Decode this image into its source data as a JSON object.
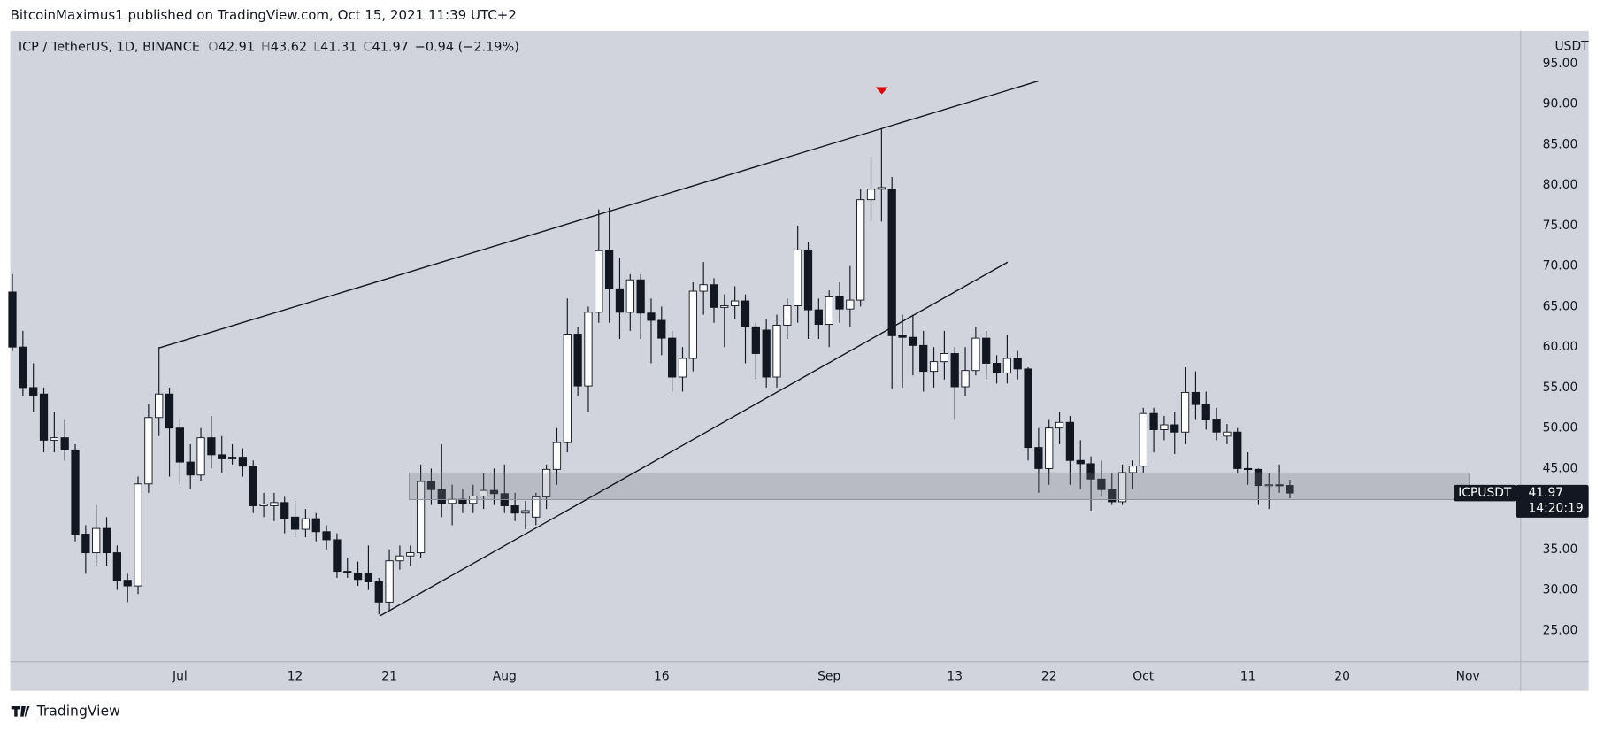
{
  "header": {
    "published": "BitcoinMaximus1 published on TradingView.com, Oct 15, 2021 11:39 UTC+2"
  },
  "chart_data": {
    "type": "candlestick",
    "title": "ICP / TetherUS, 1D, BINANCE",
    "readout": {
      "open_label": "O",
      "open": "42.91",
      "high_label": "H",
      "high": "43.62",
      "low_label": "L",
      "low": "41.31",
      "close_label": "C",
      "close": "41.97",
      "change": "−0.94 (−2.19%)"
    },
    "y_axis_label": "USDT",
    "last_price": {
      "symbol": "ICPUSDT",
      "price": "41.97",
      "countdown": "14:20:19"
    },
    "up_color": "#ffffff",
    "down_color": "#131722",
    "wick_color": "#131722",
    "grid": false,
    "categories": [
      null,
      null,
      null,
      null,
      null,
      null,
      null,
      null,
      null,
      null,
      null,
      null,
      null,
      null,
      null,
      null,
      "Jul",
      null,
      null,
      null,
      null,
      null,
      null,
      null,
      null,
      null,
      null,
      "12",
      null,
      null,
      null,
      null,
      null,
      null,
      null,
      null,
      "21",
      null,
      null,
      null,
      null,
      null,
      null,
      null,
      null,
      null,
      null,
      "Aug",
      null,
      null,
      null,
      null,
      null,
      null,
      null,
      null,
      null,
      null,
      null,
      null,
      null,
      null,
      "16",
      null,
      null,
      null,
      null,
      null,
      null,
      null,
      null,
      null,
      null,
      null,
      null,
      null,
      null,
      null,
      "Sep",
      null,
      null,
      null,
      null,
      null,
      null,
      null,
      null,
      null,
      null,
      null,
      "13",
      null,
      null,
      null,
      null,
      null,
      null,
      null,
      null,
      "22",
      null,
      null,
      null,
      null,
      null,
      null,
      null,
      null,
      "Oct",
      null,
      null,
      null,
      null,
      null,
      null,
      null,
      null,
      null,
      "11",
      null,
      null,
      null,
      null,
      null,
      null,
      null,
      null,
      "20",
      null,
      null,
      null,
      null,
      null,
      null,
      null,
      null,
      null,
      null,
      null,
      "Nov",
      null,
      null,
      null,
      null
    ],
    "open": [
      66.8,
      60,
      55,
      54.2,
      48.5,
      48.8,
      47.3,
      36.9,
      34.6,
      37.6,
      34.6,
      31.2,
      30.5,
      43.1,
      51.3,
      54.2,
      50,
      45.8,
      44.2,
      48.8,
      46.7,
      46.2,
      46.4,
      45.3,
      40.4,
      40.4,
      40.8,
      39,
      37.5,
      38.8,
      37.2,
      36.2,
      32.3,
      32.1,
      32,
      31,
      28.5,
      33.6,
      34.2,
      34.6,
      43.4,
      42.4,
      40.7,
      41.2,
      40.7,
      41.6,
      42.3,
      41.9,
      40.4,
      39.5,
      39,
      41.5,
      44.9,
      48.2,
      61.6,
      55.2,
      64.3,
      71.9,
      67.2,
      64.3,
      68.3,
      64.2,
      63.3,
      61.1,
      56.3,
      58.6,
      66.9,
      67.7,
      64.9,
      65.1,
      65.7,
      62.5,
      62.1,
      56.3,
      62.7,
      65.1,
      72,
      64.6,
      62.8,
      66.2,
      64.7,
      65.8,
      78.2,
      79.5,
      79.5,
      61.4,
      61.2,
      60.2,
      57,
      58.2,
      59.2,
      55.1,
      57.1,
      61.1,
      58,
      56.8,
      58.6,
      57.3,
      47.6,
      45,
      50,
      50.7,
      46,
      45.6,
      43.7,
      42.4,
      40.9,
      44.5,
      45.3,
      51.8,
      49.8,
      50.4,
      49.5,
      54.4,
      52.9,
      51,
      49,
      49.5,
      45,
      44.9,
      42.9,
      43,
      42.91,
      null,
      null,
      null,
      null,
      null,
      null,
      null,
      null,
      null,
      null,
      null,
      null,
      null,
      null,
      null,
      null,
      null,
      null,
      null,
      null,
      null
    ],
    "high": [
      69,
      62,
      58,
      55,
      52,
      51,
      48,
      38,
      40.5,
      39,
      35.5,
      32,
      44,
      53,
      60,
      55,
      51,
      48,
      50,
      51.5,
      49,
      48,
      47.5,
      46,
      42,
      42,
      41.5,
      41,
      40,
      39.5,
      38,
      37,
      34,
      33.5,
      35.5,
      31.5,
      35,
      35.5,
      35.5,
      45.5,
      45,
      48,
      43,
      42.5,
      43,
      44.5,
      45,
      45.5,
      42,
      41,
      42,
      45.5,
      50,
      66,
      62.5,
      65,
      77,
      77.2,
      71,
      69,
      69,
      66,
      65,
      62,
      60,
      68,
      70.5,
      68.5,
      66.5,
      67.5,
      66.5,
      63,
      63.5,
      64,
      66,
      75,
      73,
      66,
      67,
      68,
      70,
      79.5,
      83.5,
      87,
      81,
      64,
      64,
      62,
      60,
      62,
      60,
      60,
      62.5,
      62,
      59,
      61.5,
      59.5,
      57.5,
      50,
      51,
      52,
      51.5,
      48.5,
      46.5,
      46,
      44.5,
      45.5,
      46,
      52.5,
      52.5,
      51.5,
      52,
      57.5,
      57,
      54.5,
      52.5,
      50.5,
      50,
      47,
      45,
      44.5,
      45.5,
      43.62,
      null,
      null,
      null,
      null,
      null,
      null,
      null,
      null,
      null,
      null,
      null,
      null,
      null,
      null,
      null,
      null,
      null,
      null,
      null,
      null,
      null
    ],
    "low": [
      59.5,
      54,
      52,
      47,
      47,
      46,
      36,
      32,
      33,
      33,
      30,
      28.5,
      29.5,
      42,
      49,
      44,
      43,
      42.5,
      43.5,
      45,
      44.5,
      45.5,
      44,
      39.5,
      39,
      38.5,
      37,
      36.5,
      36.5,
      36,
      35,
      31.5,
      31.5,
      30.5,
      30,
      27,
      27.5,
      32.5,
      33,
      34,
      40.5,
      39,
      38,
      39.5,
      39.5,
      40,
      40.5,
      39.5,
      38.5,
      37.5,
      38,
      40,
      43,
      47,
      54,
      52,
      63,
      63,
      61,
      62,
      61,
      58,
      59,
      54.5,
      54.5,
      57,
      64,
      63,
      60,
      63.5,
      58,
      56,
      55,
      55,
      61,
      63,
      61,
      61,
      60,
      63,
      62.5,
      65,
      75.5,
      75.5,
      54.8,
      55,
      56.5,
      54.5,
      55,
      56,
      51,
      54,
      56.5,
      56,
      55.5,
      55.5,
      56,
      46,
      42,
      43,
      48,
      43,
      42.5,
      39.8,
      41.5,
      40.5,
      40.5,
      42.5,
      44.5,
      47,
      48.5,
      46.8,
      48,
      51,
      49.8,
      48.5,
      48,
      44.5,
      43,
      40.5,
      40,
      42,
      41.31,
      null,
      null,
      null,
      null,
      null,
      null,
      null,
      null,
      null,
      null,
      null,
      null,
      null,
      null,
      null,
      null,
      null,
      null,
      null,
      null,
      null
    ],
    "close": [
      60,
      55,
      54,
      48.5,
      48.8,
      47.3,
      36.9,
      34.6,
      37.6,
      34.6,
      31.2,
      30.5,
      43.1,
      51.3,
      54.2,
      50,
      45.8,
      44.2,
      48.8,
      46.7,
      46.2,
      46.4,
      45.3,
      40.4,
      40.6,
      40.8,
      38.8,
      37.5,
      38.8,
      37.2,
      36.2,
      32.3,
      32.1,
      31.3,
      31,
      28.5,
      33.6,
      34.2,
      34.6,
      43.4,
      42.4,
      40.7,
      41.2,
      40.7,
      41.6,
      42.3,
      41.9,
      40.4,
      39.5,
      39.8,
      41.5,
      44.9,
      48.2,
      61.6,
      55.2,
      64.3,
      71.9,
      67.2,
      64.3,
      68.3,
      64.2,
      63.3,
      61.1,
      56.3,
      58.6,
      66.9,
      67.7,
      64.9,
      65.1,
      65.7,
      62.5,
      59.2,
      56.3,
      62.7,
      65.1,
      72,
      64.6,
      62.8,
      66.2,
      64.7,
      65.8,
      78.2,
      79.5,
      79.7,
      61.4,
      61.2,
      60.2,
      57,
      58.2,
      59.2,
      55.1,
      57.1,
      61.1,
      58,
      56.8,
      58.6,
      57.3,
      47.6,
      45,
      50,
      50.7,
      46,
      45.6,
      43.7,
      42.4,
      40.9,
      44.5,
      45.3,
      51.8,
      49.8,
      50.4,
      49.5,
      54.4,
      52.9,
      51,
      49.5,
      49.5,
      45,
      44.9,
      42.9,
      43,
      42.9,
      41.97,
      null,
      null,
      null,
      null,
      null,
      null,
      null,
      null,
      null,
      null,
      null,
      null,
      null,
      null,
      null,
      null,
      null,
      null,
      null,
      null,
      null
    ],
    "ylim": [
      21.2,
      99.05
    ],
    "yticks": [
      {
        "value": 25,
        "label": "25.00"
      },
      {
        "value": 30,
        "label": "30.00"
      },
      {
        "value": 35,
        "label": "35.00"
      },
      {
        "value": 40,
        "label": "40.00"
      },
      {
        "value": 45,
        "label": "45.00"
      },
      {
        "value": 50,
        "label": "50.00"
      },
      {
        "value": 55,
        "label": "55.00"
      },
      {
        "value": 60,
        "label": "60.00"
      },
      {
        "value": 65,
        "label": "65.00"
      },
      {
        "value": 70,
        "label": "70.00"
      },
      {
        "value": 75,
        "label": "75.00"
      },
      {
        "value": 80,
        "label": "80.00"
      },
      {
        "value": 85,
        "label": "85.00"
      },
      {
        "value": 90,
        "label": "90.00"
      },
      {
        "value": 95,
        "label": "95.00"
      }
    ]
  },
  "footer": {
    "brand": "TradingView"
  }
}
